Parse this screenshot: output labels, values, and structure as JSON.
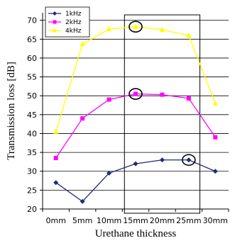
{
  "chart_data": {
    "type": "line",
    "categories": [
      "0mm",
      "5mm",
      "10mm",
      "15mm",
      "20mm",
      "25mm",
      "30mm"
    ],
    "series": [
      {
        "name": "1kHz",
        "values": [
          27,
          22,
          29.5,
          32,
          33,
          33,
          30
        ],
        "color": "#1F2A7A",
        "marker": "diamond"
      },
      {
        "name": "2kHz",
        "values": [
          33.5,
          44,
          49,
          50.5,
          50.3,
          49.3,
          39
        ],
        "color": "#FF00FF",
        "marker": "square"
      },
      {
        "name": "4kHz",
        "values": [
          40.5,
          63.7,
          67.7,
          68.3,
          67.5,
          66,
          48
        ],
        "color": "#FFFF00",
        "marker": "triangle"
      }
    ],
    "y_ticks": [
      "20",
      "25",
      "30",
      "35",
      "40",
      "45",
      "50",
      "55",
      "60",
      "65",
      "70"
    ],
    "ylim": [
      20,
      72
    ],
    "xlabel": "Urethane thickness",
    "ylabel": "Transmission loss [dB]",
    "grid": true,
    "legend_position": "top-left",
    "highlight_box": {
      "from_category": "15mm",
      "to_category": "25mm"
    },
    "circled_points": [
      {
        "series": "4kHz",
        "category": "15mm"
      },
      {
        "series": "2kHz",
        "category": "15mm"
      },
      {
        "series": "1kHz",
        "category": "25mm"
      }
    ]
  }
}
